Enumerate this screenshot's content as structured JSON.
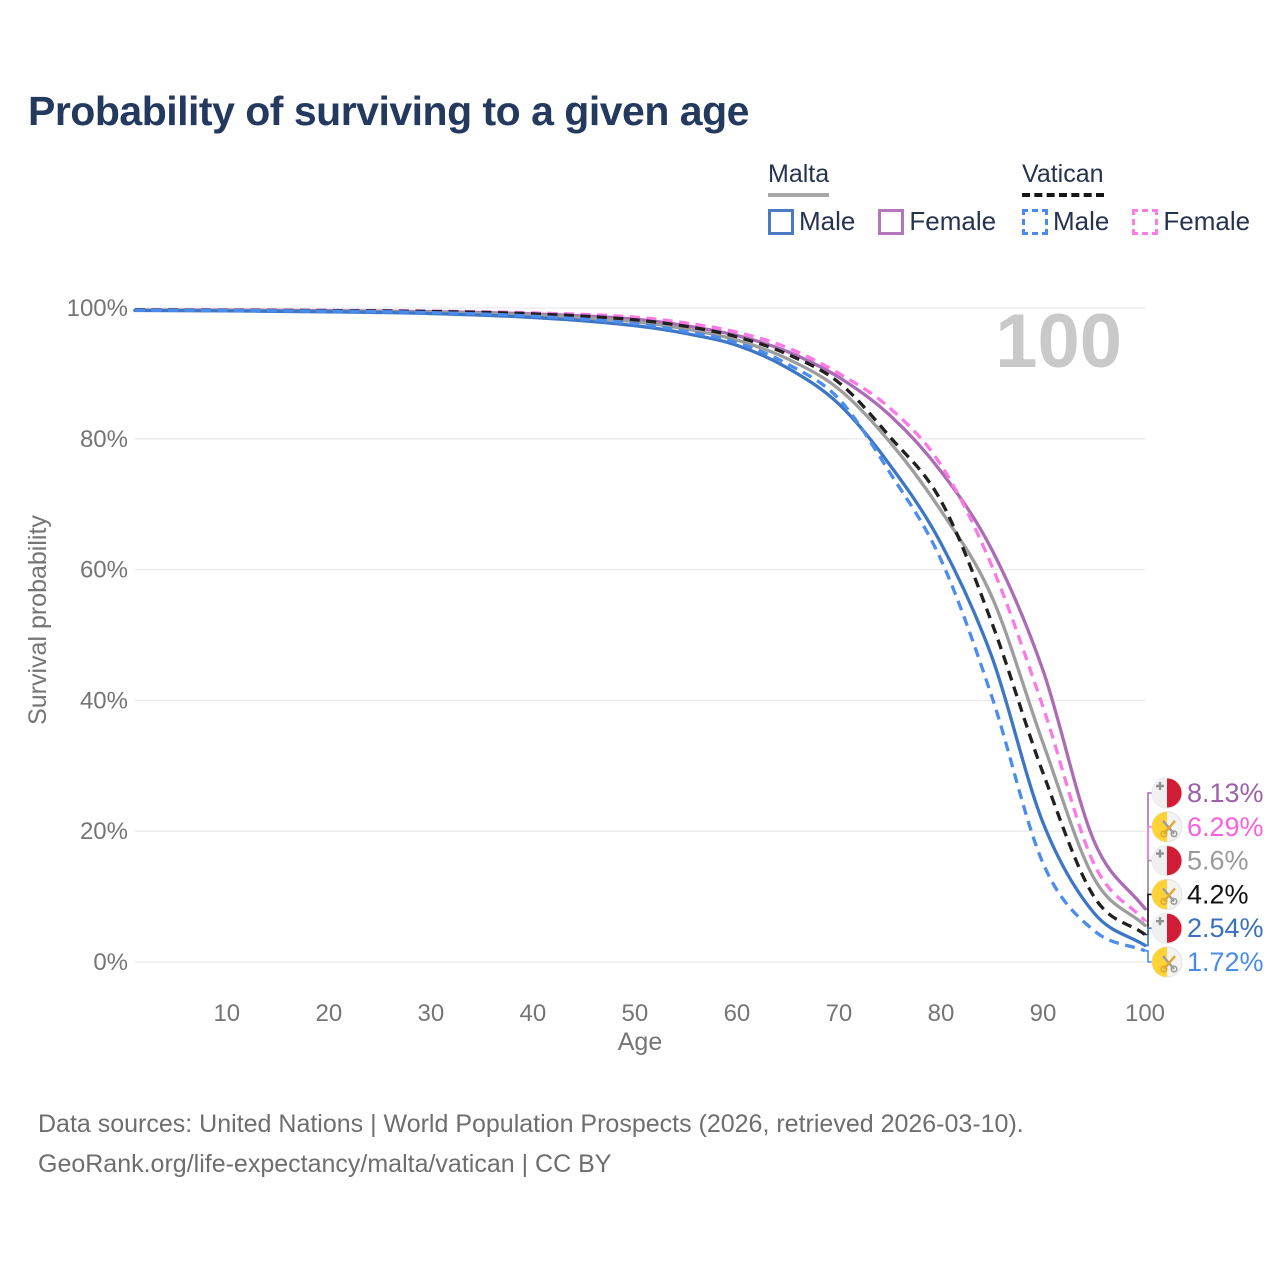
{
  "header": {
    "title": "Probability of surviving to a given age",
    "title_color": "#24395e"
  },
  "legend": {
    "text_color": "#26334f",
    "groups": [
      {
        "id": "malta",
        "name": "Malta",
        "underline_color": "#a8a8a8",
        "underline_style": "solid",
        "items": [
          {
            "label": "Male",
            "color": "#4a7ac1",
            "swatch_style": "solid"
          },
          {
            "label": "Female",
            "color": "#b577bb",
            "swatch_style": "solid"
          }
        ]
      },
      {
        "id": "vatican",
        "name": "Vatican",
        "underline_color": "#161616",
        "underline_style": "dashed",
        "items": [
          {
            "label": "Male",
            "color": "#4b8bf0",
            "swatch_style": "dashed"
          },
          {
            "label": "Female",
            "color": "#fc7ce8",
            "swatch_style": "dashed"
          }
        ]
      }
    ]
  },
  "chart_data": {
    "type": "line",
    "title": "Probability of surviving to a given age",
    "xlabel": "Age",
    "ylabel": "Survival probability",
    "x_range": [
      1,
      100
    ],
    "y_range_percent": [
      0,
      100
    ],
    "x_ticks": [
      10,
      20,
      30,
      40,
      50,
      60,
      70,
      80,
      90,
      100
    ],
    "y_ticks_percent": [
      0,
      20,
      40,
      60,
      80,
      100
    ],
    "y_tick_suffix": "%",
    "grid": "horizontal-only",
    "gridline_color": "#e9e9e9",
    "tick_color": "#757575",
    "watermark": "100",
    "watermark_color": "#c9c9c9",
    "ages": [
      1,
      10,
      20,
      30,
      40,
      50,
      55,
      60,
      65,
      70,
      75,
      80,
      85,
      90,
      95,
      100
    ],
    "series": [
      {
        "name": "Malta Female",
        "country": "malta",
        "sex": "female",
        "line_style": "solid",
        "color": "#ac6cb5",
        "label_color": "#9c61a6",
        "end_label": "8.13%",
        "values_percent": [
          99.7,
          99.66,
          99.58,
          99.44,
          99.1,
          98.3,
          97.3,
          95.8,
          93.3,
          89.4,
          83.6,
          75.0,
          63.0,
          44.6,
          18.5,
          8.13
        ]
      },
      {
        "name": "Vatican Female",
        "country": "vatican",
        "sex": "female",
        "line_style": "dashed",
        "color": "#fb79e4",
        "label_color": "#f961de",
        "end_label": "6.29%",
        "values_percent": [
          99.75,
          99.7,
          99.64,
          99.52,
          99.25,
          98.6,
          97.7,
          96.3,
          93.9,
          90.0,
          84.7,
          76.0,
          60.5,
          39.0,
          15.0,
          6.29
        ]
      },
      {
        "name": "Malta Both Sexes",
        "country": "malta",
        "sex": "all",
        "line_style": "solid",
        "color": "#9d9d9d",
        "label_color": "#9a9a9a",
        "end_label": "5.6%",
        "values_percent": [
          99.66,
          99.6,
          99.5,
          99.32,
          98.9,
          97.9,
          96.8,
          95.1,
          92.2,
          87.6,
          79.5,
          69.0,
          55.8,
          33.5,
          12.8,
          5.6
        ]
      },
      {
        "name": "Vatican Both Sexes",
        "country": "vatican",
        "sex": "all",
        "line_style": "dashed",
        "color": "#202020",
        "label_color": "#111111",
        "end_label": "4.2%",
        "values_percent": [
          99.72,
          99.67,
          99.6,
          99.46,
          99.1,
          98.2,
          97.2,
          95.6,
          92.9,
          88.6,
          80.3,
          70.5,
          51.8,
          28.9,
          10.0,
          4.2
        ]
      },
      {
        "name": "Malta Male",
        "country": "malta",
        "sex": "male",
        "line_style": "solid",
        "color": "#3d76c4",
        "label_color": "#3b70ba",
        "end_label": "2.54%",
        "values_percent": [
          99.62,
          99.55,
          99.42,
          99.15,
          98.55,
          97.3,
          96.1,
          94.3,
          90.8,
          85.3,
          76.0,
          64.0,
          46.6,
          21.3,
          7.5,
          2.54
        ]
      },
      {
        "name": "Vatican Male",
        "country": "vatican",
        "sex": "male",
        "line_style": "dashed",
        "color": "#4b8ced",
        "label_color": "#4a8ce8",
        "end_label": "1.72%",
        "values_percent": [
          99.68,
          99.62,
          99.52,
          99.3,
          98.75,
          97.6,
          96.4,
          94.7,
          91.4,
          86.1,
          74.8,
          61.5,
          40.5,
          15.1,
          4.8,
          1.72
        ]
      }
    ],
    "flag_colors": {
      "malta": {
        "left": "#f0f0f0",
        "right": "#d21b34",
        "cross": "#909090"
      },
      "vatican": {
        "left": "#ffd336",
        "right": "#f3f3f3",
        "key_gold": "#dfa92f",
        "key_gray": "#9d9d9d"
      }
    }
  },
  "footer": {
    "line1": "Data sources: United Nations | World Population Prospects (2026, retrieved 2026-03-10).",
    "line2": "GeoRank.org/life-expectancy/malta/vatican | CC BY"
  }
}
